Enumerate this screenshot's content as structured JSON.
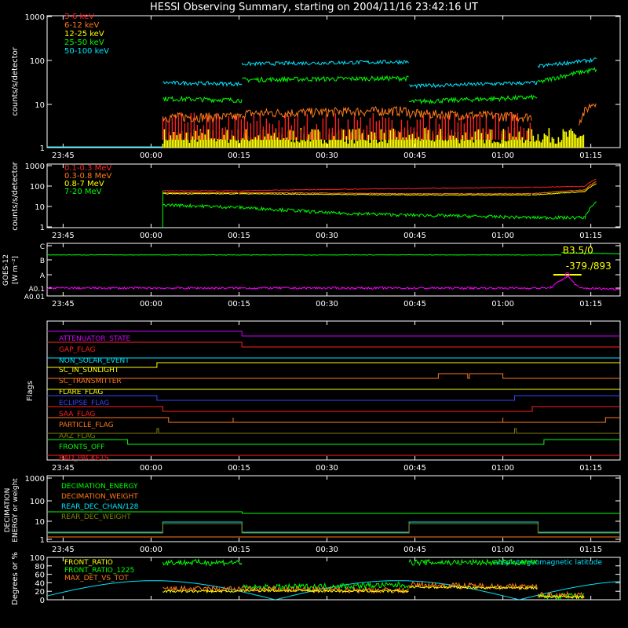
{
  "title": "HESSI Observing Summary, starting on 2004/11/16 23:42:16 UT",
  "time_labels": [
    "23:45",
    "00:00",
    "00:15",
    "00:30",
    "00:45",
    "01:00",
    "01:15"
  ],
  "colors": {
    "axis": "#ffffff",
    "band_3_6": "#ff2020",
    "band_6_12": "#ff7a1a",
    "band_12_25": "#ffff00",
    "band_25_50": "#00ff00",
    "band_50_100": "#00e5ff",
    "mev_01_03": "#ff2020",
    "mev_03_08": "#ff7a1a",
    "mev_08_7": "#ffff00",
    "mev_7_20": "#00ff00",
    "goes_long": "#00ff00",
    "goes_short": "#ff00ff",
    "flare_marker": "#ffff00",
    "flag_attenuator": "#cc00ff",
    "flag_gap": "#ff2020",
    "flag_nonsolar": "#00e5ff",
    "flag_sunlight": "#ffff00",
    "flag_transmitter": "#ff7a1a",
    "flag_flare": "#ffff00",
    "flag_eclipse": "#3344ff",
    "flag_saa": "#ff2020",
    "flag_particle": "#ff7a1a",
    "flag_aaz": "#808000",
    "flag_fronts_off": "#00ff00",
    "flag_bad_packets": "#ff2020",
    "dec_energy": "#00ff00",
    "dec_weight": "#ff7a1a",
    "rear_chan": "#00e5ff",
    "rear_weight": "#808000",
    "front_ratio": "#ffff00",
    "front_ratio_1225": "#00ff00",
    "max_det": "#ff7a1a",
    "geomag": "#00e5ff"
  },
  "chart_data": [
    {
      "type": "line",
      "ylabel": "counts/s/detector",
      "yscale": "log",
      "ylim": [
        1,
        1000
      ],
      "ytick_labels": [
        "1",
        "10",
        "100",
        "1000"
      ],
      "legend": [
        "3-6 keV",
        "6-12 keV",
        "12-25 keV",
        "25-50 keV",
        "50-100 keV"
      ],
      "series": [
        {
          "name": "50-100 keV",
          "x": [
            "00:02",
            "00:15",
            "00:16",
            "00:43",
            "00:44",
            "00:53",
            "01:05",
            "01:06",
            "01:14",
            "01:16"
          ],
          "values": [
            30,
            28,
            80,
            90,
            25,
            28,
            35,
            70,
            70,
            100
          ]
        },
        {
          "name": "25-50 keV",
          "x": [
            "00:02",
            "00:15",
            "00:16",
            "00:43",
            "00:44",
            "00:55",
            "01:05",
            "01:06",
            "01:14",
            "01:16"
          ],
          "values": [
            13,
            12,
            35,
            38,
            11,
            14,
            15,
            30,
            30,
            60
          ]
        },
        {
          "name": "6-12 keV",
          "x": [
            "00:02",
            "00:15",
            "00:30",
            "00:40",
            "00:45",
            "00:55",
            "01:05"
          ],
          "values": [
            5,
            5,
            7,
            8,
            6,
            6,
            5
          ]
        }
      ]
    },
    {
      "type": "line",
      "ylabel": "counts/s/detector",
      "yscale": "log",
      "ylim": [
        1,
        1000
      ],
      "ytick_labels": [
        "1",
        "10",
        "100",
        "1000"
      ],
      "legend": [
        "0.1-0.3 MeV",
        "0.3-0.8 MeV",
        "0.8-7 MeV",
        "7-20 MeV"
      ],
      "series": [
        {
          "name": "0.1-0.3 MeV",
          "x": [
            "00:02",
            "00:15",
            "00:43",
            "01:05",
            "01:14",
            "01:16"
          ],
          "values": [
            55,
            55,
            70,
            80,
            90,
            200
          ]
        },
        {
          "name": "0.3-0.8 MeV",
          "x": [
            "00:02",
            "00:15",
            "00:43",
            "01:05",
            "01:14",
            "01:16"
          ],
          "values": [
            45,
            45,
            40,
            40,
            60,
            150
          ]
        },
        {
          "name": "0.8-7 MeV",
          "x": [
            "00:02",
            "00:15",
            "00:43",
            "01:05",
            "01:14",
            "01:16"
          ],
          "values": [
            40,
            40,
            35,
            35,
            50,
            120
          ]
        },
        {
          "name": "7-20 MeV",
          "x": [
            "00:02",
            "00:15",
            "00:30",
            "00:43",
            "01:05",
            "01:14",
            "01:16"
          ],
          "values": [
            12,
            9,
            5,
            4,
            3,
            3,
            15
          ]
        }
      ]
    },
    {
      "type": "line",
      "ylabel": "GOES-12 [W m⁻²]",
      "ytick_labels": [
        "C",
        "B",
        "A",
        "A0.1",
        "A0.01"
      ],
      "annotations": [
        "B3.5/0",
        "-379./893"
      ]
    },
    {
      "type": "line",
      "ylabel": "Flags",
      "flags": [
        "ATTENUATOR_STATE",
        "GAP_FLAG",
        "NON_SOLAR_EVENT",
        "SC_IN_SUNLIGHT",
        "SC_TRANSMITTER",
        "FLARE_FLAG",
        "ECLIPSE_FLAG",
        "SAA_FLAG",
        "PARTICLE_FLAG",
        "AAZ_FLAG",
        "FRONTS_OFF",
        "BAD_PACKETS"
      ]
    },
    {
      "type": "line",
      "ylabel": "DECIMATION ENERGY or weight",
      "yscale": "log",
      "ytick_labels": [
        "1",
        "10",
        "100",
        "1000"
      ],
      "legend": [
        "DECIMATION_ENERGY",
        "DECIMATION_WEIGHT",
        "REAR_DEC_CHAN/128",
        "REAR_DEC_WEIGHT"
      ]
    },
    {
      "type": "line",
      "ylabel": "Degrees or %",
      "ylim": [
        0,
        100
      ],
      "ytick_labels": [
        "0",
        "20",
        "40",
        "60",
        "80",
        "100"
      ],
      "legend": [
        "FRONT_RATIO",
        "FRONT_RATIO_1225",
        "MAX_DET_VS_TOT"
      ],
      "right_label": "absolute geomagnetic latitude"
    }
  ]
}
